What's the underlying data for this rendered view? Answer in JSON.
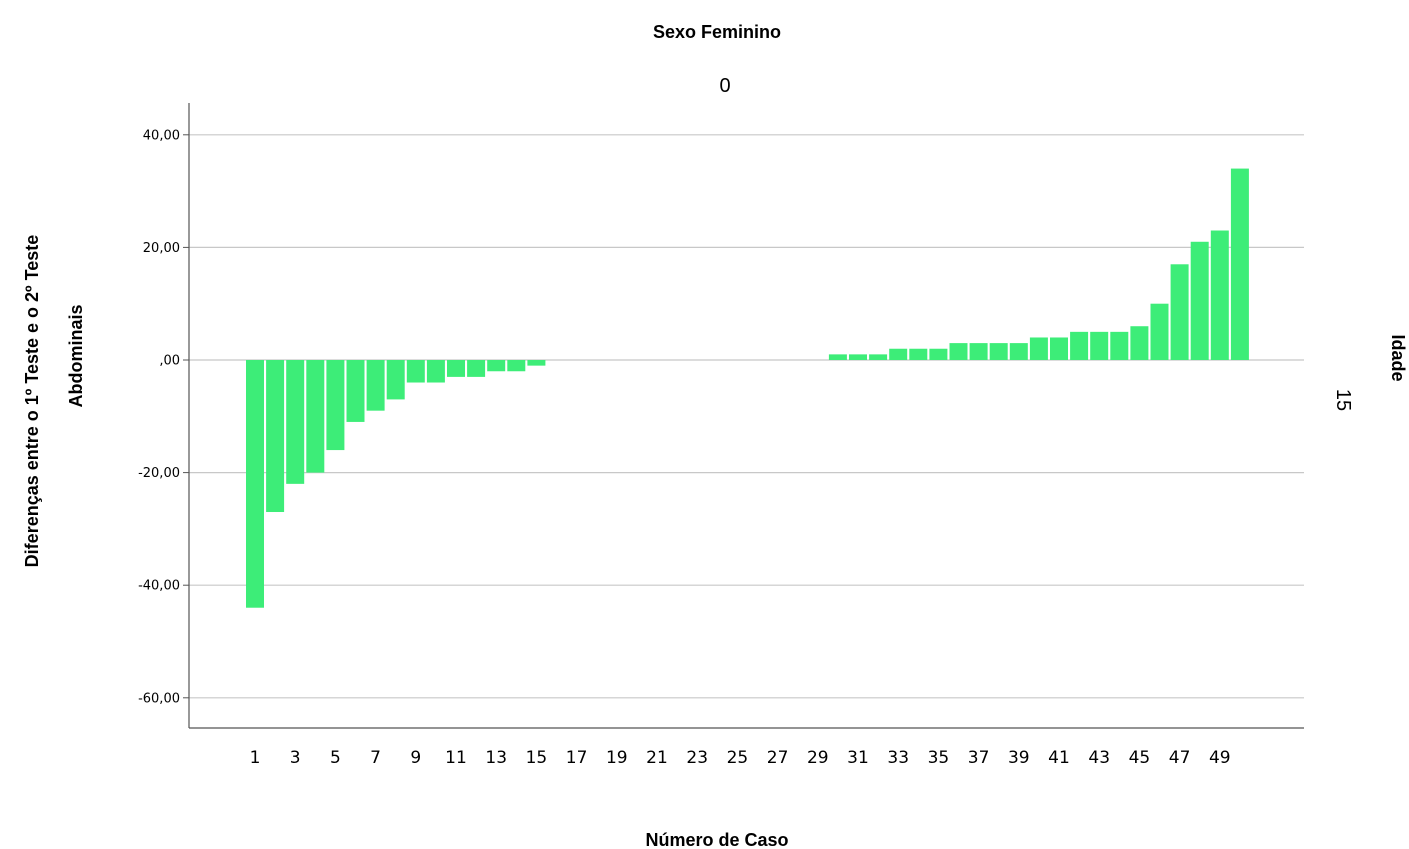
{
  "chart_data": {
    "type": "bar",
    "title": "Sexo Feminino",
    "panel_top_label": "0",
    "panel_right_value": "15",
    "panel_right_title": "Idade",
    "xlabel": "Número de Caso",
    "ylabel_lines": [
      "Diferenças entre o 1º Teste e o 2º Teste",
      "Abdominais"
    ],
    "ylim": [
      -65,
      45
    ],
    "yticks": [
      40,
      20,
      0,
      -20,
      -40,
      -60
    ],
    "ytick_labels": [
      "40,00",
      "20,00",
      ",00",
      "-20,00",
      "-40,00",
      "-60,00"
    ],
    "grid": true,
    "bar_color": "#3ded78",
    "categories": [
      1,
      2,
      3,
      4,
      5,
      6,
      7,
      8,
      9,
      10,
      11,
      12,
      13,
      14,
      15,
      16,
      17,
      18,
      19,
      20,
      21,
      22,
      23,
      24,
      25,
      26,
      27,
      28,
      29,
      30,
      31,
      32,
      33,
      34,
      35,
      36,
      37,
      38,
      39,
      40,
      41,
      42,
      43,
      44,
      45,
      46,
      47,
      48,
      49,
      50
    ],
    "xtick_labels": [
      "1",
      "3",
      "5",
      "7",
      "9",
      "11",
      "13",
      "15",
      "17",
      "19",
      "21",
      "23",
      "25",
      "27",
      "29",
      "31",
      "33",
      "35",
      "37",
      "39",
      "41",
      "43",
      "45",
      "47",
      "49"
    ],
    "values": [
      -44,
      -27,
      -22,
      -20,
      -16,
      -11,
      -9,
      -7,
      -4,
      -4,
      -3,
      -3,
      -2,
      -2,
      -1,
      0,
      0,
      0,
      0,
      0,
      0,
      0,
      0,
      0,
      0,
      0,
      0,
      0,
      0,
      1,
      1,
      1,
      2,
      2,
      2,
      3,
      3,
      3,
      3,
      4,
      4,
      5,
      5,
      5,
      6,
      10,
      17,
      21,
      23,
      34
    ]
  }
}
